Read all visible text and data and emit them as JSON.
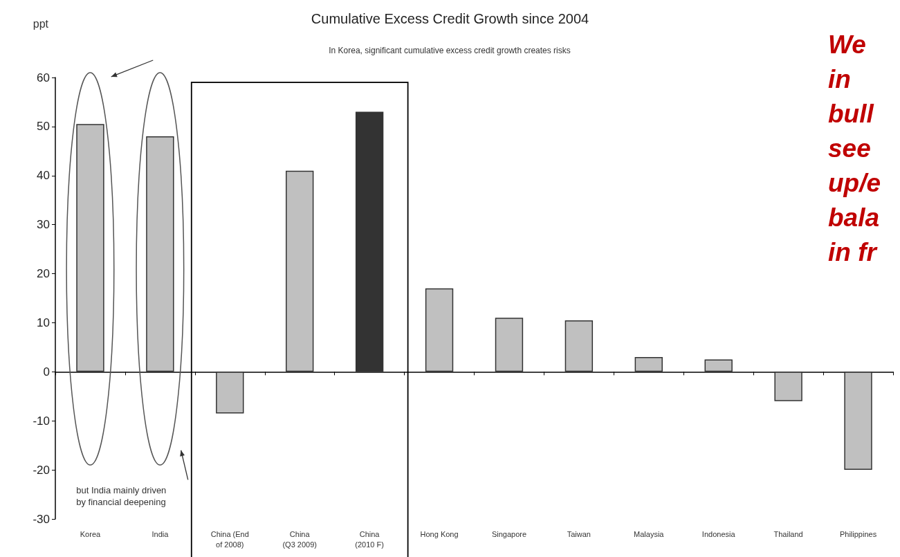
{
  "chart_data": {
    "type": "bar",
    "title": "Cumulative Excess Credit Growth since 2004",
    "ylabel": "ppt",
    "categories": [
      "Korea",
      "India",
      "China (End\nof 2008)",
      "China\n(Q3 2009)",
      "China\n(2010 F)",
      "Hong Kong",
      "Singapore",
      "Taiwan",
      "Malaysia",
      "Indonesia",
      "Thailand",
      "Philippines"
    ],
    "values": [
      50.5,
      48,
      -8.5,
      41,
      53,
      17,
      11,
      10.5,
      3,
      2.5,
      -6,
      -20
    ],
    "colors": [
      "#c0c0c0",
      "#c0c0c0",
      "#c0c0c0",
      "#c0c0c0",
      "#333333",
      "#c0c0c0",
      "#c0c0c0",
      "#c0c0c0",
      "#c0c0c0",
      "#c0c0c0",
      "#c0c0c0",
      "#c0c0c0"
    ],
    "ylim": [
      -30,
      60
    ],
    "yticks": [
      -30,
      -20,
      -10,
      0,
      10,
      20,
      30,
      40,
      50,
      60
    ],
    "annotations": [
      "In Korea, significant cumulative excess credit growth creates risks",
      "but India mainly driven\nby financial deepening",
      "We\nin\nbull\nsee\nup/e\nbala\nin fr"
    ]
  }
}
